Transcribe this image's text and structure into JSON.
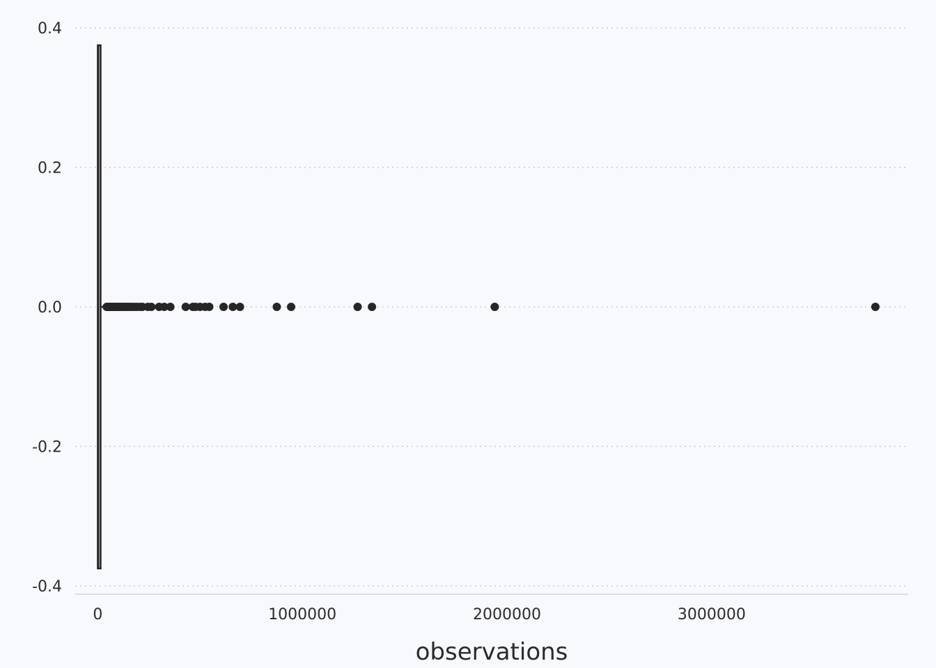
{
  "chart_data": {
    "type": "box",
    "orientation": "horizontal",
    "title": "",
    "xlabel": "observations",
    "ylabel": "",
    "xlim": [
      -110000,
      3960000
    ],
    "ylim": [
      -0.4,
      0.4
    ],
    "x_ticks": [
      0,
      1000000,
      2000000,
      3000000
    ],
    "x_tick_labels": [
      "0",
      "1000000",
      "2000000",
      "3000000"
    ],
    "y_ticks": [
      0.4,
      0.2,
      0.0,
      -0.2,
      -0.4
    ],
    "y_tick_labels": [
      "0.4",
      "0.2",
      "0.0",
      "-0.2",
      "-0.4"
    ],
    "grid": "horizontal-dotted",
    "legend": "none",
    "box": {
      "y": 0.0,
      "lower_whisker": 0,
      "q1": 400,
      "median": 3000,
      "q3": 12000,
      "upper_whisker": 28000,
      "height": 0.75
    },
    "outliers": [
      44000,
      48000,
      52000,
      56000,
      60000,
      64000,
      68000,
      72000,
      77000,
      82000,
      88000,
      94000,
      100000,
      106000,
      112000,
      120000,
      128000,
      136000,
      145000,
      155000,
      165000,
      178000,
      190000,
      205000,
      218000,
      245000,
      262000,
      300000,
      325000,
      355000,
      430000,
      465000,
      478000,
      500000,
      525000,
      545000,
      615000,
      660000,
      695000,
      875000,
      945000,
      1270000,
      1340000,
      1940000,
      3800000
    ],
    "colors": {
      "background": "#f8f9fd",
      "box": "#222222",
      "points": "#262626",
      "grid": "#c4c4c4"
    }
  }
}
